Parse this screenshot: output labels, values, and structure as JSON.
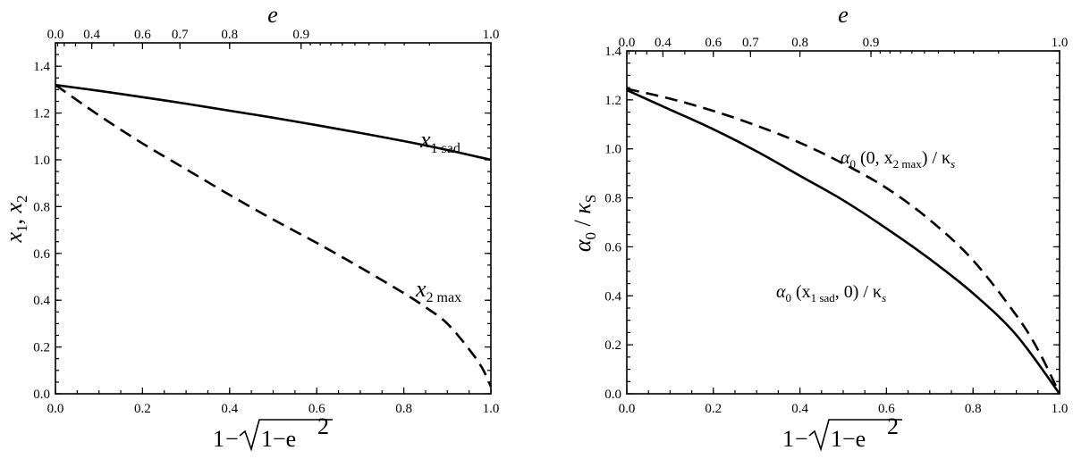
{
  "chart_data": [
    {
      "type": "line",
      "x_axis": {
        "label_prefix": "1",
        "label_minus": "−",
        "label_radicand": "1−e",
        "label_exponent": "2",
        "range": [
          0,
          1
        ],
        "ticks": [
          0.0,
          0.2,
          0.4,
          0.6,
          0.8,
          1.0
        ],
        "tick_labels": [
          "0.0",
          "0.2",
          "0.4",
          "0.6",
          "0.8",
          "1.0"
        ]
      },
      "top_axis": {
        "label": "e",
        "ticks": [
          0.0,
          0.4,
          0.6,
          0.7,
          0.8,
          0.9,
          1.0
        ],
        "tick_labels": [
          "0.0",
          "0.4",
          "0.6",
          "0.7",
          "0.8",
          "0.9",
          "1.0"
        ]
      },
      "y_axis": {
        "label": "x1, x2",
        "label_x1": "x",
        "label_x1_sub": "1",
        "label_sep": ", ",
        "label_x2": "x",
        "label_x2_sub": "2",
        "range": [
          0,
          1.5
        ],
        "ticks": [
          0.0,
          0.2,
          0.4,
          0.6,
          0.8,
          1.0,
          1.2,
          1.4
        ],
        "tick_labels": [
          "0.0",
          "0.2",
          "0.4",
          "0.6",
          "0.8",
          "1.0",
          "1.2",
          "1.4"
        ]
      },
      "series": [
        {
          "name": "x1 sad",
          "style": "solid",
          "annotation": {
            "main": "x",
            "sub": "1 sad"
          },
          "x": [
            0.0,
            0.1,
            0.2,
            0.3,
            0.4,
            0.5,
            0.6,
            0.7,
            0.8,
            0.9,
            1.0
          ],
          "y": [
            1.32,
            1.295,
            1.268,
            1.24,
            1.21,
            1.18,
            1.148,
            1.115,
            1.08,
            1.042,
            1.0
          ]
        },
        {
          "name": "x2 max",
          "style": "dashed",
          "annotation": {
            "main": "x",
            "sub": "2 max"
          },
          "x": [
            0.0,
            0.1,
            0.2,
            0.3,
            0.4,
            0.5,
            0.6,
            0.7,
            0.8,
            0.85,
            0.9,
            0.95,
            0.98,
            1.0
          ],
          "y": [
            1.32,
            1.19,
            1.07,
            0.96,
            0.85,
            0.745,
            0.645,
            0.54,
            0.43,
            0.37,
            0.3,
            0.19,
            0.11,
            0.03
          ]
        }
      ]
    },
    {
      "type": "line",
      "x_axis": {
        "label_prefix": "1",
        "label_minus": "−",
        "label_radicand": "1−e",
        "label_exponent": "2",
        "range": [
          0,
          1
        ],
        "ticks": [
          0.0,
          0.2,
          0.4,
          0.6,
          0.8,
          1.0
        ],
        "tick_labels": [
          "0.0",
          "0.2",
          "0.4",
          "0.6",
          "0.8",
          "1.0"
        ]
      },
      "top_axis": {
        "label": "e",
        "ticks": [
          0.0,
          0.4,
          0.6,
          0.7,
          0.8,
          0.9,
          1.0
        ],
        "tick_labels": [
          "0.0",
          "0.4",
          "0.6",
          "0.7",
          "0.8",
          "0.9",
          "1.0"
        ]
      },
      "y_axis": {
        "label_alpha": "α",
        "label_alpha_sub": "0",
        "label_sep": " / ",
        "label_kappa": "κ",
        "label_kappa_sub": "S",
        "range": [
          0,
          1.4
        ],
        "ticks": [
          0.0,
          0.2,
          0.4,
          0.6,
          0.8,
          1.0,
          1.2,
          1.4
        ],
        "tick_labels": [
          "0.0",
          "0.2",
          "0.4",
          "0.6",
          "0.8",
          "1.0",
          "1.2",
          "1.4"
        ]
      },
      "series": [
        {
          "name": "α0 (x1 sad, 0) / κs",
          "style": "solid",
          "annotation": {
            "pre": "α",
            "pre_sub": "0",
            "args": " (x",
            "args_sub": "1 sad",
            "post": ", 0) / κ",
            "post_sub": "s"
          },
          "x": [
            0.0,
            0.1,
            0.2,
            0.3,
            0.4,
            0.5,
            0.6,
            0.7,
            0.8,
            0.9,
            1.0
          ],
          "y": [
            1.24,
            1.16,
            1.08,
            0.99,
            0.89,
            0.79,
            0.675,
            0.55,
            0.41,
            0.24,
            0.0
          ]
        },
        {
          "name": "α0 (0, x2 max) / κs",
          "style": "dashed",
          "annotation": {
            "pre": "α",
            "pre_sub": "0",
            "args": " (0, x",
            "args_sub": "2 max",
            "post": ") / κ",
            "post_sub": "s"
          },
          "x": [
            0.0,
            0.1,
            0.2,
            0.3,
            0.4,
            0.5,
            0.6,
            0.7,
            0.8,
            0.9,
            0.95,
            1.0
          ],
          "y": [
            1.245,
            1.205,
            1.155,
            1.095,
            1.025,
            0.94,
            0.84,
            0.71,
            0.545,
            0.32,
            0.18,
            0.0
          ]
        }
      ]
    }
  ]
}
